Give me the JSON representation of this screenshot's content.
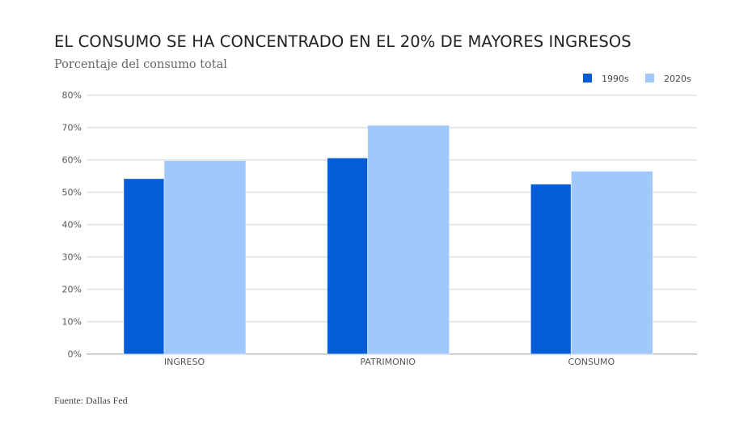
{
  "chart_data": {
    "type": "bar",
    "title": "EL CONSUMO SE HA CONCENTRADO EN EL 20% DE MAYORES INGRESOS",
    "subtitle": "Porcentaje del consumo total",
    "source": "Fuente: Dallas Fed",
    "categories": [
      "INGRESO",
      "PATRIMONIO",
      "CONSUMO"
    ],
    "series": [
      {
        "name": "1990s",
        "color": "#045cd6",
        "values": [
          54.2,
          60.6,
          52.5
        ]
      },
      {
        "name": "2020s",
        "color": "#a1c8fd",
        "values": [
          59.8,
          70.7,
          56.5
        ]
      }
    ],
    "ylim": [
      0,
      80
    ],
    "yticks": [
      "0%",
      "10%",
      "20%",
      "30%",
      "40%",
      "50%",
      "60%",
      "70%",
      "80%"
    ],
    "grid": true,
    "legend": "top-right",
    "xlabel": "",
    "ylabel": ""
  }
}
